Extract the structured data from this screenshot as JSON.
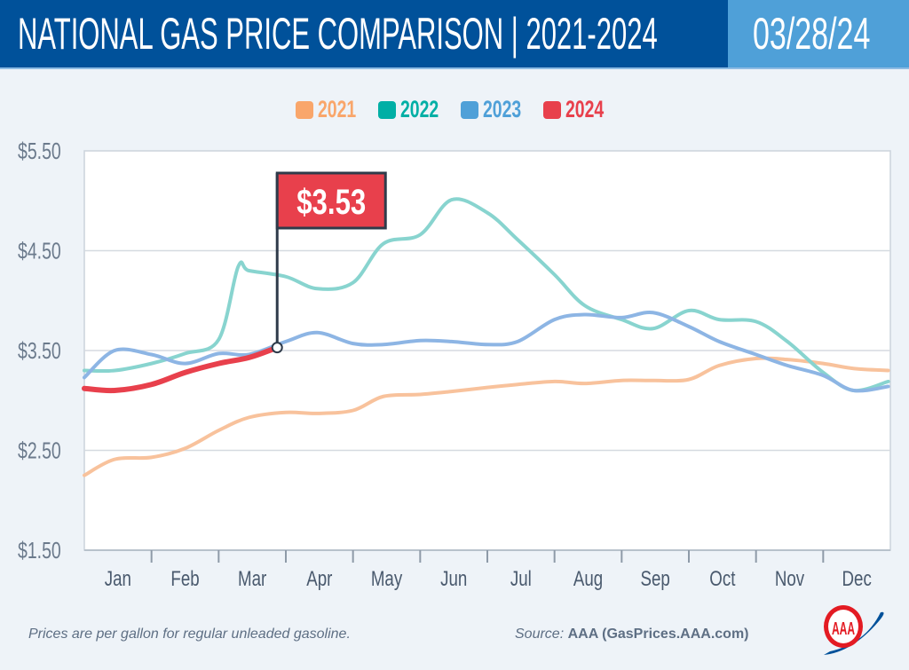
{
  "header": {
    "title": "NATIONAL GAS PRICE COMPARISON | 2021-2024",
    "date": "03/28/24"
  },
  "colors": {
    "header": "#00519A",
    "date_box": "#4FA0D8",
    "background": "#EEF3F8"
  },
  "footer": {
    "note": "Prices are per gallon for regular unleaded gasoline.",
    "source_label": "Source:",
    "source_value": "AAA (GasPrices.AAA.com)",
    "logo": "AAA"
  },
  "chart_data": {
    "type": "line",
    "title": "NATIONAL GAS PRICE COMPARISON | 2021-2024",
    "xlabel": "",
    "ylabel": "",
    "ylim": [
      1.5,
      5.5
    ],
    "yticks": [
      1.5,
      2.5,
      3.5,
      4.5,
      5.5
    ],
    "ytick_labels": [
      "$1.50",
      "$2.50",
      "$3.50",
      "$4.50",
      "$5.50"
    ],
    "xtick_labels": [
      "Jan",
      "Feb",
      "Mar",
      "Apr",
      "May",
      "Jun",
      "Jul",
      "Aug",
      "Sep",
      "Oct",
      "Nov",
      "Dec"
    ],
    "grid": true,
    "legend_placement": "top-center",
    "annotation": {
      "label": "$3.53",
      "date": "Mar 28",
      "value": 3.53,
      "series": "2024",
      "color": "#E8404C"
    },
    "series": [
      {
        "name": "2021",
        "color": "#F9A66B",
        "line_color": "#F8C29C",
        "x": [
          "Jan 1",
          "Jan 15",
          "Feb 1",
          "Feb 15",
          "Mar 1",
          "Mar 15",
          "Apr 1",
          "Apr 15",
          "May 1",
          "May 15",
          "Jun 1",
          "Jun 15",
          "Jul 1",
          "Jul 15",
          "Aug 1",
          "Aug 15",
          "Sep 1",
          "Sep 15",
          "Oct 1",
          "Oct 15",
          "Nov 1",
          "Nov 15",
          "Dec 1",
          "Dec 15",
          "Dec 31"
        ],
        "values": [
          2.25,
          2.41,
          2.43,
          2.52,
          2.7,
          2.83,
          2.88,
          2.87,
          2.9,
          3.04,
          3.06,
          3.09,
          3.13,
          3.16,
          3.19,
          3.17,
          3.2,
          3.2,
          3.21,
          3.35,
          3.42,
          3.41,
          3.37,
          3.32,
          3.3
        ]
      },
      {
        "name": "2022",
        "color": "#00AFA5",
        "line_color": "#88D4CF",
        "x": [
          "Jan 1",
          "Jan 15",
          "Feb 1",
          "Feb 15",
          "Mar 1",
          "Mar 10",
          "Mar 15",
          "Apr 1",
          "Apr 15",
          "May 1",
          "May 15",
          "Jun 1",
          "Jun 15",
          "Jul 1",
          "Jul 15",
          "Aug 1",
          "Aug 15",
          "Sep 1",
          "Sep 15",
          "Oct 1",
          "Oct 15",
          "Nov 1",
          "Nov 15",
          "Dec 1",
          "Dec 15",
          "Dec 31"
        ],
        "values": [
          3.3,
          3.3,
          3.37,
          3.47,
          3.61,
          4.34,
          4.3,
          4.24,
          4.12,
          4.18,
          4.57,
          4.66,
          5.01,
          4.88,
          4.61,
          4.26,
          3.95,
          3.81,
          3.72,
          3.9,
          3.81,
          3.79,
          3.59,
          3.28,
          3.1,
          3.19
        ]
      },
      {
        "name": "2023",
        "color": "#4FA0D8",
        "line_color": "#8DB5E4",
        "x": [
          "Jan 1",
          "Jan 15",
          "Feb 1",
          "Feb 15",
          "Mar 1",
          "Mar 15",
          "Apr 1",
          "Apr 15",
          "May 1",
          "May 15",
          "Jun 1",
          "Jun 15",
          "Jul 1",
          "Jul 15",
          "Aug 1",
          "Aug 15",
          "Sep 1",
          "Sep 15",
          "Oct 1",
          "Oct 15",
          "Nov 1",
          "Nov 15",
          "Dec 1",
          "Dec 15",
          "Dec 31"
        ],
        "values": [
          3.23,
          3.5,
          3.46,
          3.37,
          3.47,
          3.46,
          3.59,
          3.68,
          3.57,
          3.56,
          3.6,
          3.59,
          3.56,
          3.59,
          3.81,
          3.86,
          3.83,
          3.88,
          3.74,
          3.59,
          3.46,
          3.35,
          3.25,
          3.1,
          3.14
        ]
      },
      {
        "name": "2024",
        "color": "#E8404C",
        "line_color": "#E8404C",
        "x": [
          "Jan 1",
          "Jan 15",
          "Feb 1",
          "Feb 15",
          "Mar 1",
          "Mar 15",
          "Mar 28"
        ],
        "values": [
          3.12,
          3.1,
          3.16,
          3.28,
          3.37,
          3.43,
          3.53
        ]
      }
    ]
  }
}
